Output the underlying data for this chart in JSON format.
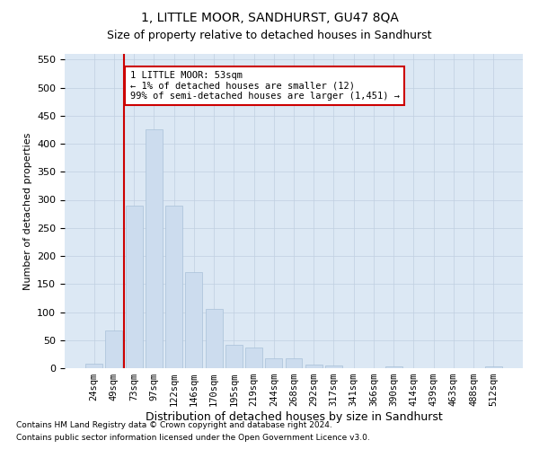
{
  "title": "1, LITTLE MOOR, SANDHURST, GU47 8QA",
  "subtitle": "Size of property relative to detached houses in Sandhurst",
  "xlabel": "Distribution of detached houses by size in Sandhurst",
  "ylabel": "Number of detached properties",
  "bar_color": "#ccdcee",
  "bar_edge_color": "#a8c0d8",
  "grid_color": "#c0cfe0",
  "background_color": "#dce8f4",
  "categories": [
    "24sqm",
    "49sqm",
    "73sqm",
    "97sqm",
    "122sqm",
    "146sqm",
    "170sqm",
    "195sqm",
    "219sqm",
    "244sqm",
    "268sqm",
    "292sqm",
    "317sqm",
    "341sqm",
    "366sqm",
    "390sqm",
    "414sqm",
    "439sqm",
    "463sqm",
    "488sqm",
    "512sqm"
  ],
  "values": [
    8,
    68,
    290,
    425,
    290,
    172,
    105,
    42,
    37,
    18,
    18,
    7,
    5,
    0,
    0,
    4,
    0,
    0,
    0,
    0,
    3
  ],
  "marker_bar_index": 1,
  "marker_label_line1": "1 LITTLE MOOR: 53sqm",
  "marker_label_line2": "← 1% of detached houses are smaller (12)",
  "marker_label_line3": "99% of semi-detached houses are larger (1,451) →",
  "ylim_max": 560,
  "yticks": [
    0,
    50,
    100,
    150,
    200,
    250,
    300,
    350,
    400,
    450,
    500,
    550
  ],
  "footer_line1": "Contains HM Land Registry data © Crown copyright and database right 2024.",
  "footer_line2": "Contains public sector information licensed under the Open Government Licence v3.0.",
  "marker_line_color": "#cc0000",
  "annotation_box_facecolor": "#ffffff",
  "annotation_box_edgecolor": "#cc0000",
  "title_fontsize": 10,
  "subtitle_fontsize": 9,
  "ylabel_fontsize": 8,
  "xlabel_fontsize": 9,
  "tick_fontsize": 7.5,
  "ytick_fontsize": 8,
  "footer_fontsize": 6.5
}
